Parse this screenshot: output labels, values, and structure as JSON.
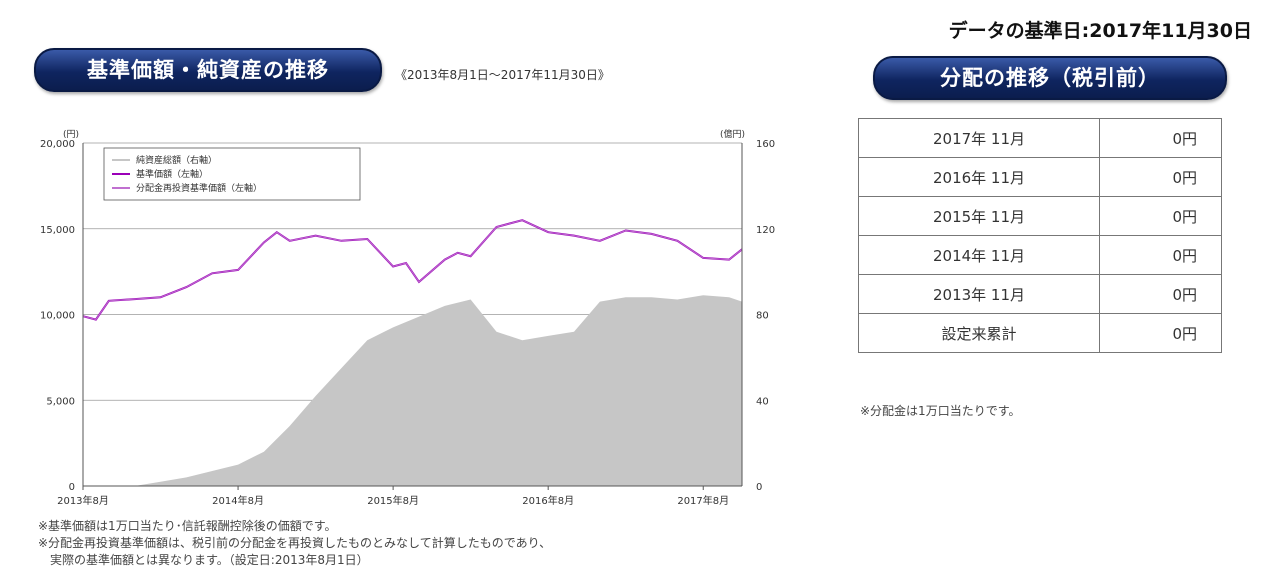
{
  "header": {
    "base_date": "データの基準日:2017年11月30日"
  },
  "left_panel": {
    "title": "基準価額・純資産の推移",
    "period": "《2013年8月1日～2017年11月30日》",
    "notes": [
      "※基準価額は1万口当たり･信託報酬控除後の価額です。",
      "※分配金再投資基準価額は、税引前の分配金を再投資したものとみなして計算したものであり、",
      "実際の基準価額とは異なります。（設定日:2013年8月1日）"
    ]
  },
  "right_panel": {
    "title": "分配の推移（税引前）",
    "rows": [
      {
        "period": "2017年 11月",
        "amount": "0円"
      },
      {
        "period": "2016年 11月",
        "amount": "0円"
      },
      {
        "period": "2015年 11月",
        "amount": "0円"
      },
      {
        "period": "2014年 11月",
        "amount": "0円"
      },
      {
        "period": "2013年 11月",
        "amount": "0円"
      },
      {
        "period": "設定来累計",
        "amount": "0円"
      }
    ],
    "note": "※分配金は1万口当たりです。"
  },
  "chart_data": {
    "type": "line",
    "left_axis_unit": "(円)",
    "right_axis_unit": "(億円)",
    "ylim_left": [
      0,
      20000
    ],
    "ylim_right": [
      0,
      160
    ],
    "left_ticks": [
      "0",
      "5,000",
      "10,000",
      "15,000",
      "20,000"
    ],
    "right_ticks": [
      "0",
      "40",
      "80",
      "120",
      "160"
    ],
    "x_ticks": [
      "2013年8月",
      "2014年8月",
      "2015年8月",
      "2016年8月",
      "2017年8月"
    ],
    "xlim": [
      "2013-08",
      "2017-11"
    ],
    "grid": true,
    "legend_position": "top-left",
    "colors": {
      "nav_area": "#c6c6c6",
      "price_line": "#9b00b8",
      "reinvest_line": "#c070d0"
    },
    "series": [
      {
        "name": "純資産総額（右軸）",
        "type": "area",
        "axis": "right",
        "x": [
          "2013-08",
          "2013-10",
          "2013-12",
          "2014-02",
          "2014-04",
          "2014-06",
          "2014-08",
          "2014-10",
          "2014-12",
          "2015-02",
          "2015-04",
          "2015-06",
          "2015-08",
          "2015-10",
          "2015-12",
          "2016-02",
          "2016-04",
          "2016-06",
          "2016-08",
          "2016-10",
          "2016-12",
          "2017-02",
          "2017-04",
          "2017-06",
          "2017-08",
          "2017-10",
          "2017-11"
        ],
        "values": [
          0,
          0,
          0,
          2,
          4,
          7,
          10,
          16,
          28,
          42,
          55,
          68,
          74,
          79,
          84,
          87,
          72,
          68,
          70,
          72,
          86,
          88,
          88,
          87,
          89,
          88,
          86
        ]
      },
      {
        "name": "基準価額（左軸）",
        "type": "line",
        "axis": "left",
        "x": [
          "2013-08",
          "2013-09",
          "2013-10",
          "2013-12",
          "2014-02",
          "2014-04",
          "2014-06",
          "2014-08",
          "2014-10",
          "2014-11",
          "2014-12",
          "2015-02",
          "2015-04",
          "2015-06",
          "2015-08",
          "2015-09",
          "2015-10",
          "2015-12",
          "2016-01",
          "2016-02",
          "2016-04",
          "2016-06",
          "2016-08",
          "2016-10",
          "2016-12",
          "2017-02",
          "2017-04",
          "2017-06",
          "2017-08",
          "2017-10",
          "2017-11"
        ],
        "values": [
          9900,
          9700,
          10800,
          10900,
          11000,
          11600,
          12400,
          12600,
          14200,
          14800,
          14300,
          14600,
          14300,
          14400,
          12800,
          13000,
          11900,
          13200,
          13600,
          13400,
          15100,
          15500,
          14800,
          14600,
          14300,
          14900,
          14700,
          14300,
          13300,
          13200,
          13800
        ]
      },
      {
        "name": "分配金再投資基準価額（左軸）",
        "type": "line",
        "axis": "left",
        "x": [
          "2013-08",
          "2013-09",
          "2013-10",
          "2013-12",
          "2014-02",
          "2014-04",
          "2014-06",
          "2014-08",
          "2014-10",
          "2014-11",
          "2014-12",
          "2015-02",
          "2015-04",
          "2015-06",
          "2015-08",
          "2015-09",
          "2015-10",
          "2015-12",
          "2016-01",
          "2016-02",
          "2016-04",
          "2016-06",
          "2016-08",
          "2016-10",
          "2016-12",
          "2017-02",
          "2017-04",
          "2017-06",
          "2017-08",
          "2017-10",
          "2017-11"
        ],
        "values": [
          9900,
          9700,
          10800,
          10900,
          11000,
          11600,
          12400,
          12600,
          14200,
          14800,
          14300,
          14600,
          14300,
          14400,
          12800,
          13000,
          11900,
          13200,
          13600,
          13400,
          15100,
          15500,
          14800,
          14600,
          14300,
          14900,
          14700,
          14300,
          13300,
          13200,
          13800
        ]
      }
    ]
  }
}
